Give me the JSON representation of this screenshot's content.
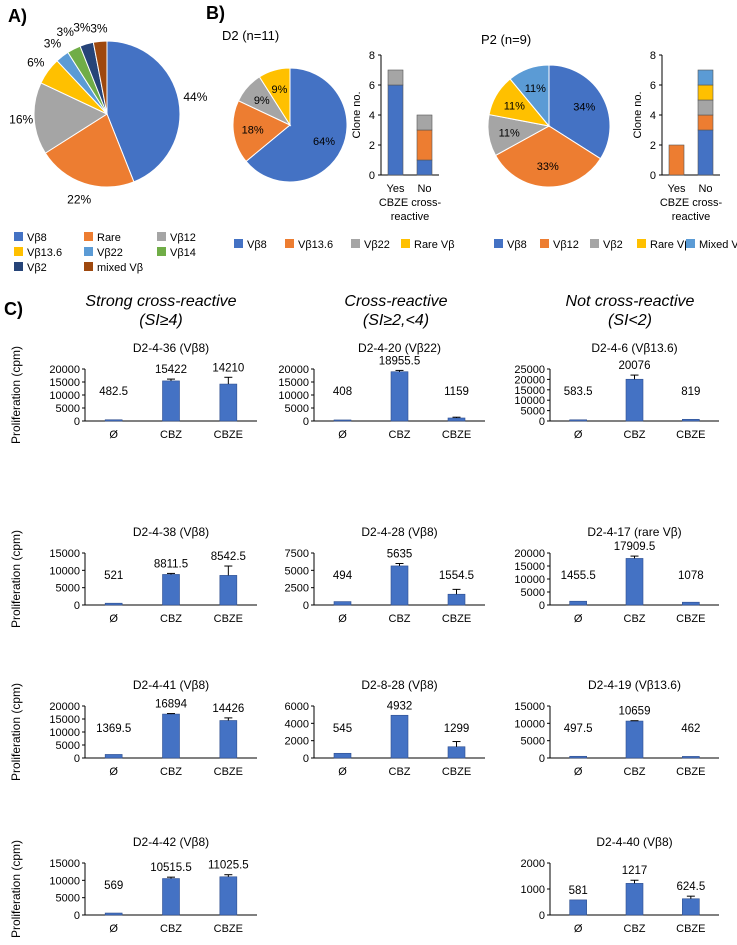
{
  "colors": {
    "vb8": "#4472C4",
    "orange": "#ED7D31",
    "grey": "#A5A5A5",
    "yellow": "#FFC000",
    "lightblue": "#5B9BD5",
    "green": "#70AD47",
    "navy": "#264478",
    "brown": "#9E480E",
    "bar": "#4472C4"
  },
  "panel_labels": {
    "a": "A)",
    "b": "B)",
    "c": "C)"
  },
  "panel_c_headers": [
    {
      "line1": "Strong cross-reactive",
      "line2": "(SI≥4)"
    },
    {
      "line1": "Cross-reactive",
      "line2": "(SI≥2,<4)"
    },
    {
      "line1": "Not cross-reactive",
      "line2": "(SI<2)"
    }
  ],
  "panel_c_ylabel": "Proliferation (cpm)",
  "chart_data": [
    {
      "id": "A-pie",
      "type": "pie",
      "title": "",
      "labels": [
        "Vβ8",
        "Rare",
        "Vβ12",
        "Vβ13.6",
        "Vβ22",
        "Vβ14",
        "Vβ2",
        "mixed Vβ"
      ],
      "values": [
        44,
        22,
        16,
        6,
        3,
        3,
        3,
        3
      ],
      "value_labels": [
        "44%",
        "22%",
        "16%",
        "6%",
        "3%",
        "3%",
        "3%",
        "3%"
      ],
      "colors": [
        "#4472C4",
        "#ED7D31",
        "#A5A5A5",
        "#FFC000",
        "#5B9BD5",
        "#70AD47",
        "#264478",
        "#9E480E"
      ]
    },
    {
      "id": "B-D2-pie",
      "type": "pie",
      "title": "D2 (n=11)",
      "labels": [
        "Vβ8",
        "Vβ13.6",
        "Vβ22",
        "Rare Vβ"
      ],
      "values": [
        64,
        18,
        9,
        9
      ],
      "value_labels": [
        "64%",
        "18%",
        "9%",
        "9%"
      ],
      "colors": [
        "#4472C4",
        "#ED7D31",
        "#A5A5A5",
        "#FFC000"
      ]
    },
    {
      "id": "B-D2-bar",
      "type": "bar",
      "stacked": true,
      "categories": [
        "Yes",
        "No"
      ],
      "xlabel": "CBZE cross-reactive",
      "xlabel_line1": "CBZE cross-",
      "xlabel_line2": "reactive",
      "ylabel": "Clone no.",
      "ylim": [
        0,
        8
      ],
      "yticks": [
        0,
        2,
        4,
        6,
        8
      ],
      "series": [
        {
          "name": "Vβ8",
          "color": "#4472C4",
          "values": [
            6,
            1
          ]
        },
        {
          "name": "Vβ13.6",
          "color": "#ED7D31",
          "values": [
            0,
            2
          ]
        },
        {
          "name": "Vβ22",
          "color": "#A5A5A5",
          "values": [
            1,
            1
          ]
        }
      ]
    },
    {
      "id": "B-P2-pie",
      "type": "pie",
      "title": "P2 (n=9)",
      "labels": [
        "Vβ8",
        "Vβ12",
        "Vβ2",
        "Rare Vβ",
        "Mixed Vβ"
      ],
      "values": [
        34,
        33,
        11,
        11,
        11
      ],
      "value_labels": [
        "34%",
        "33%",
        "11%",
        "11%",
        "11%"
      ],
      "colors": [
        "#4472C4",
        "#ED7D31",
        "#A5A5A5",
        "#FFC000",
        "#5B9BD5"
      ]
    },
    {
      "id": "B-P2-bar",
      "type": "bar",
      "stacked": true,
      "categories": [
        "Yes",
        "No"
      ],
      "xlabel": "CBZE cross-reactive",
      "xlabel_line1": "CBZE cross-",
      "xlabel_line2": "reactive",
      "ylabel": "Clone no.",
      "ylim": [
        0,
        8
      ],
      "yticks": [
        0,
        2,
        4,
        6,
        8
      ],
      "series": [
        {
          "name": "Vβ8",
          "color": "#4472C4",
          "values": [
            0,
            3
          ]
        },
        {
          "name": "Vβ12",
          "color": "#ED7D31",
          "values": [
            2,
            1
          ]
        },
        {
          "name": "Vβ2",
          "color": "#A5A5A5",
          "values": [
            0,
            1
          ]
        },
        {
          "name": "Rare Vβ",
          "color": "#FFC000",
          "values": [
            0,
            1
          ]
        },
        {
          "name": "Mixed Vβ",
          "color": "#5B9BD5",
          "values": [
            0,
            1
          ]
        }
      ]
    },
    {
      "id": "C-1-1",
      "type": "bar",
      "title": "D2-4-36 (Vβ8)",
      "categories": [
        "Ø",
        "CBZ",
        "CBZE"
      ],
      "values": [
        482.5,
        15422,
        14210
      ],
      "value_labels": [
        "482.5",
        "15422",
        "14210"
      ],
      "errors": [
        0,
        700,
        2600
      ],
      "ylim": [
        0,
        20000
      ],
      "yticks": [
        0,
        5000,
        10000,
        15000,
        20000
      ]
    },
    {
      "id": "C-1-2",
      "type": "bar",
      "title": "D2-4-20 (Vβ22)",
      "categories": [
        "Ø",
        "CBZ",
        "CBZE"
      ],
      "values": [
        408,
        18955.5,
        1159
      ],
      "value_labels": [
        "408",
        "18955.5",
        "1159"
      ],
      "errors": [
        0,
        500,
        300
      ],
      "ylim": [
        0,
        20000
      ],
      "yticks": [
        0,
        5000,
        10000,
        15000,
        20000
      ]
    },
    {
      "id": "C-1-3",
      "type": "bar",
      "title": "D2-4-6 (Vβ13.6)",
      "categories": [
        "Ø",
        "CBZ",
        "CBZE"
      ],
      "values": [
        583.5,
        20076,
        819
      ],
      "value_labels": [
        "583.5",
        "20076",
        "819"
      ],
      "errors": [
        0,
        2000,
        0
      ],
      "ylim": [
        0,
        25000
      ],
      "yticks": [
        0,
        5000,
        10000,
        15000,
        20000,
        25000
      ]
    },
    {
      "id": "C-2-1",
      "type": "bar",
      "title": "D2-4-38 (Vβ8)",
      "categories": [
        "Ø",
        "CBZ",
        "CBZE"
      ],
      "values": [
        521,
        8811.5,
        8542.5
      ],
      "value_labels": [
        "521",
        "8811.5",
        "8542.5"
      ],
      "errors": [
        0,
        300,
        2700
      ],
      "ylim": [
        0,
        15000
      ],
      "yticks": [
        0,
        5000,
        10000,
        15000
      ]
    },
    {
      "id": "C-2-2",
      "type": "bar",
      "title": "D2-4-28 (Vβ8)",
      "categories": [
        "Ø",
        "CBZ",
        "CBZE"
      ],
      "values": [
        494,
        5635,
        1554.5
      ],
      "value_labels": [
        "494",
        "5635",
        "1554.5"
      ],
      "errors": [
        0,
        350,
        700
      ],
      "ylim": [
        0,
        7500
      ],
      "yticks": [
        0,
        2500,
        5000,
        7500
      ]
    },
    {
      "id": "C-2-3",
      "type": "bar",
      "title": "D2-4-17 (rare Vβ)",
      "categories": [
        "Ø",
        "CBZ",
        "CBZE"
      ],
      "values": [
        1455.5,
        17909.5,
        1078
      ],
      "value_labels": [
        "1455.5",
        "17909.5",
        "1078"
      ],
      "errors": [
        0,
        900,
        0
      ],
      "ylim": [
        0,
        20000
      ],
      "yticks": [
        0,
        5000,
        10000,
        15000,
        20000
      ]
    },
    {
      "id": "C-3-1",
      "type": "bar",
      "title": "D2-4-41 (Vβ8)",
      "categories": [
        "Ø",
        "CBZ",
        "CBZE"
      ],
      "values": [
        1369.5,
        16894,
        14426
      ],
      "value_labels": [
        "1369.5",
        "16894",
        "14426"
      ],
      "errors": [
        0,
        200,
        1000
      ],
      "ylim": [
        0,
        20000
      ],
      "yticks": [
        0,
        5000,
        10000,
        15000,
        20000
      ]
    },
    {
      "id": "C-3-2",
      "type": "bar",
      "title": "D2-8-28 (Vβ8)",
      "categories": [
        "Ø",
        "CBZ",
        "CBZE"
      ],
      "values": [
        545,
        4932,
        1299
      ],
      "value_labels": [
        "545",
        "4932",
        "1299"
      ],
      "errors": [
        0,
        0,
        600
      ],
      "ylim": [
        0,
        6000
      ],
      "yticks": [
        0,
        2000,
        4000,
        6000
      ]
    },
    {
      "id": "C-3-3",
      "type": "bar",
      "title": "D2-4-19 (Vβ13.6)",
      "categories": [
        "Ø",
        "CBZ",
        "CBZE"
      ],
      "values": [
        497.5,
        10659,
        462
      ],
      "value_labels": [
        "497.5",
        "10659",
        "462"
      ],
      "errors": [
        0,
        100,
        0
      ],
      "ylim": [
        0,
        15000
      ],
      "yticks": [
        0,
        5000,
        10000,
        15000
      ]
    },
    {
      "id": "C-4-1",
      "type": "bar",
      "title": "D2-4-42 (Vβ8)",
      "categories": [
        "Ø",
        "CBZ",
        "CBZE"
      ],
      "values": [
        569,
        10515.5,
        11025.5
      ],
      "value_labels": [
        "569",
        "10515.5",
        "11025.5"
      ],
      "errors": [
        0,
        400,
        600
      ],
      "ylim": [
        0,
        15000
      ],
      "yticks": [
        0,
        5000,
        10000,
        15000
      ]
    },
    {
      "id": "C-4-3",
      "type": "bar",
      "title": "D2-4-40 (Vβ8)",
      "categories": [
        "Ø",
        "CBZ",
        "CBZE"
      ],
      "values": [
        581,
        1217,
        624.5
      ],
      "value_labels": [
        "581",
        "1217",
        "624.5"
      ],
      "errors": [
        0,
        120,
        100
      ],
      "ylim": [
        0,
        2000
      ],
      "yticks": [
        0,
        1000,
        2000
      ]
    }
  ]
}
